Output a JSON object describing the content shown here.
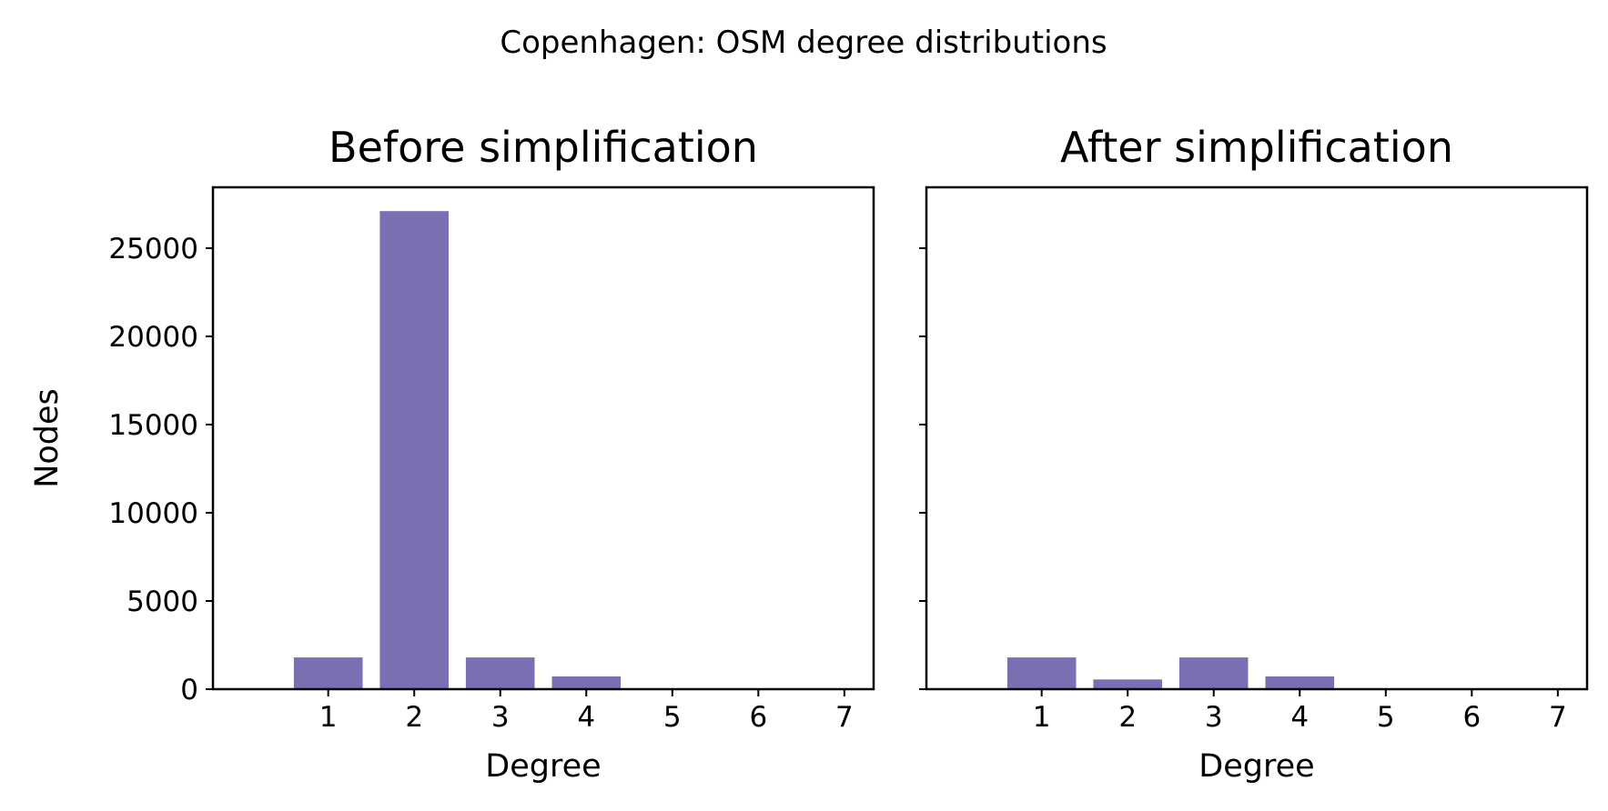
{
  "figure": {
    "suptitle": "Copenhagen: OSM degree distributions",
    "bar_color": "#7870b2"
  },
  "chart_data": [
    {
      "type": "bar",
      "title": "Before simplification",
      "xlabel": "Degree",
      "ylabel": "Nodes",
      "categories": [
        "1",
        "2",
        "3",
        "4",
        "5",
        "6",
        "7"
      ],
      "values": [
        1800,
        27100,
        1800,
        720,
        0,
        0,
        0
      ],
      "ylim": [
        0,
        28450
      ],
      "yticks": [
        0,
        5000,
        10000,
        15000,
        20000,
        25000
      ],
      "ytick_labels": [
        "0",
        "5000",
        "10000",
        "15000",
        "20000",
        "25000"
      ],
      "grid": false
    },
    {
      "type": "bar",
      "title": "After simplification",
      "xlabel": "Degree",
      "ylabel": "",
      "categories": [
        "1",
        "2",
        "3",
        "4",
        "5",
        "6",
        "7"
      ],
      "values": [
        1800,
        550,
        1800,
        720,
        0,
        0,
        0
      ],
      "ylim": [
        0,
        28450
      ],
      "yticks": [
        0,
        5000,
        10000,
        15000,
        20000,
        25000
      ],
      "ytick_labels": [],
      "grid": false,
      "sharey": true
    }
  ]
}
